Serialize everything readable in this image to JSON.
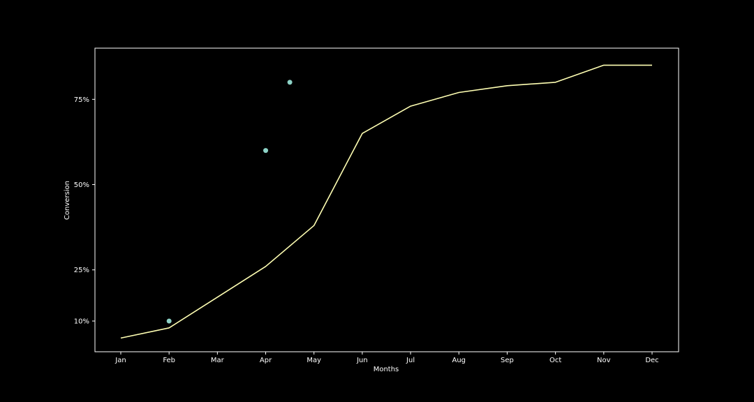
{
  "chart_data": {
    "type": "line",
    "title": "",
    "xlabel": "Months",
    "ylabel": "Conversion",
    "categories": [
      "Jan",
      "Feb",
      "Mar",
      "Apr",
      "May",
      "Jun",
      "Jul",
      "Aug",
      "Sep",
      "Oct",
      "Nov",
      "Dec"
    ],
    "ylim": [
      0.01,
      0.9
    ],
    "yticks": [
      {
        "value": 0.1,
        "label": "10%"
      },
      {
        "value": 0.25,
        "label": "25%"
      },
      {
        "value": 0.5,
        "label": "50%"
      },
      {
        "value": 0.75,
        "label": "75%"
      }
    ],
    "series": [
      {
        "kind": "line",
        "values": [
          0.05,
          0.08,
          0.17,
          0.26,
          0.38,
          0.65,
          0.73,
          0.77,
          0.79,
          0.8,
          0.85,
          0.85
        ]
      }
    ],
    "scatter_points": [
      {
        "x": 1.0,
        "y": 0.1
      },
      {
        "x": 3.0,
        "y": 0.6
      },
      {
        "x": 3.5,
        "y": 0.8
      }
    ],
    "grid": false,
    "colors": {
      "background": "#000000",
      "axes": "#ffffff",
      "line": "#ffffb3",
      "points": "#8dd3c7",
      "text": "#ffffff"
    }
  }
}
